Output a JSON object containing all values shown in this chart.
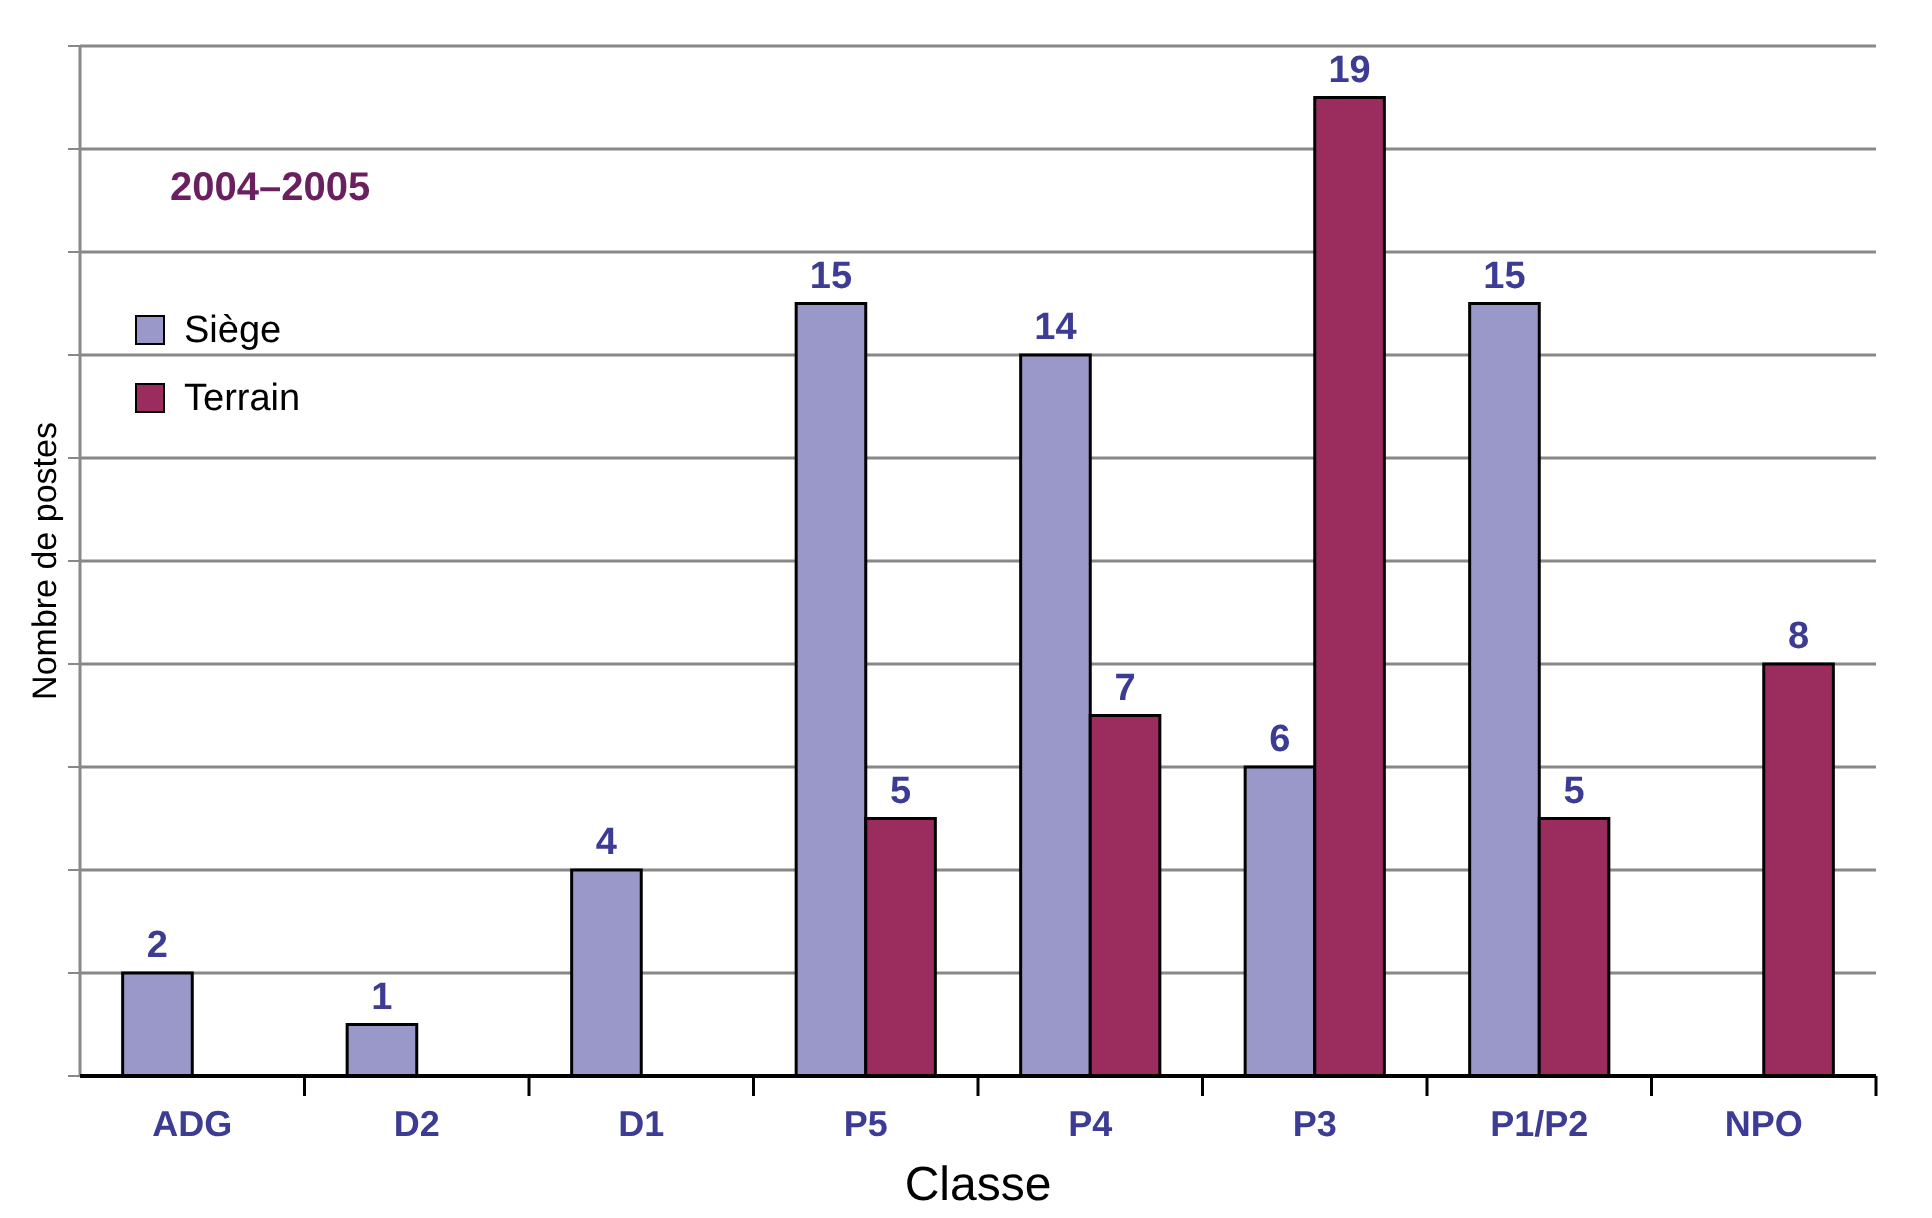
{
  "chart_data": {
    "type": "bar",
    "title": "2004–2005",
    "xlabel": "Classe",
    "ylabel": "Nombre de postes",
    "categories": [
      "ADG",
      "D2",
      "D1",
      "P5",
      "P4",
      "P3",
      "P1/P2",
      "NPO"
    ],
    "series": [
      {
        "name": "Siège",
        "color": "#9a98c8",
        "values": [
          2,
          1,
          4,
          15,
          14,
          6,
          15,
          null
        ]
      },
      {
        "name": "Terrain",
        "color": "#9b2d5e",
        "values": [
          null,
          null,
          null,
          5,
          7,
          19,
          5,
          8
        ]
      }
    ],
    "ylim": [
      0,
      20
    ],
    "yticks": [
      {
        "value": 0,
        "label": null
      },
      {
        "value": 2,
        "label": null
      },
      {
        "value": 4,
        "label": null
      },
      {
        "value": 6,
        "label": null
      },
      {
        "value": 8,
        "label": null
      },
      {
        "value": 10,
        "label": null
      },
      {
        "value": 12,
        "label": null
      },
      {
        "value": 14,
        "label": null
      },
      {
        "value": 16,
        "label": null
      },
      {
        "value": 18,
        "label": null
      },
      {
        "value": 20,
        "label": null
      }
    ],
    "tick_labels": "x",
    "grid": "y",
    "legend": "top left",
    "data_labels": true
  }
}
